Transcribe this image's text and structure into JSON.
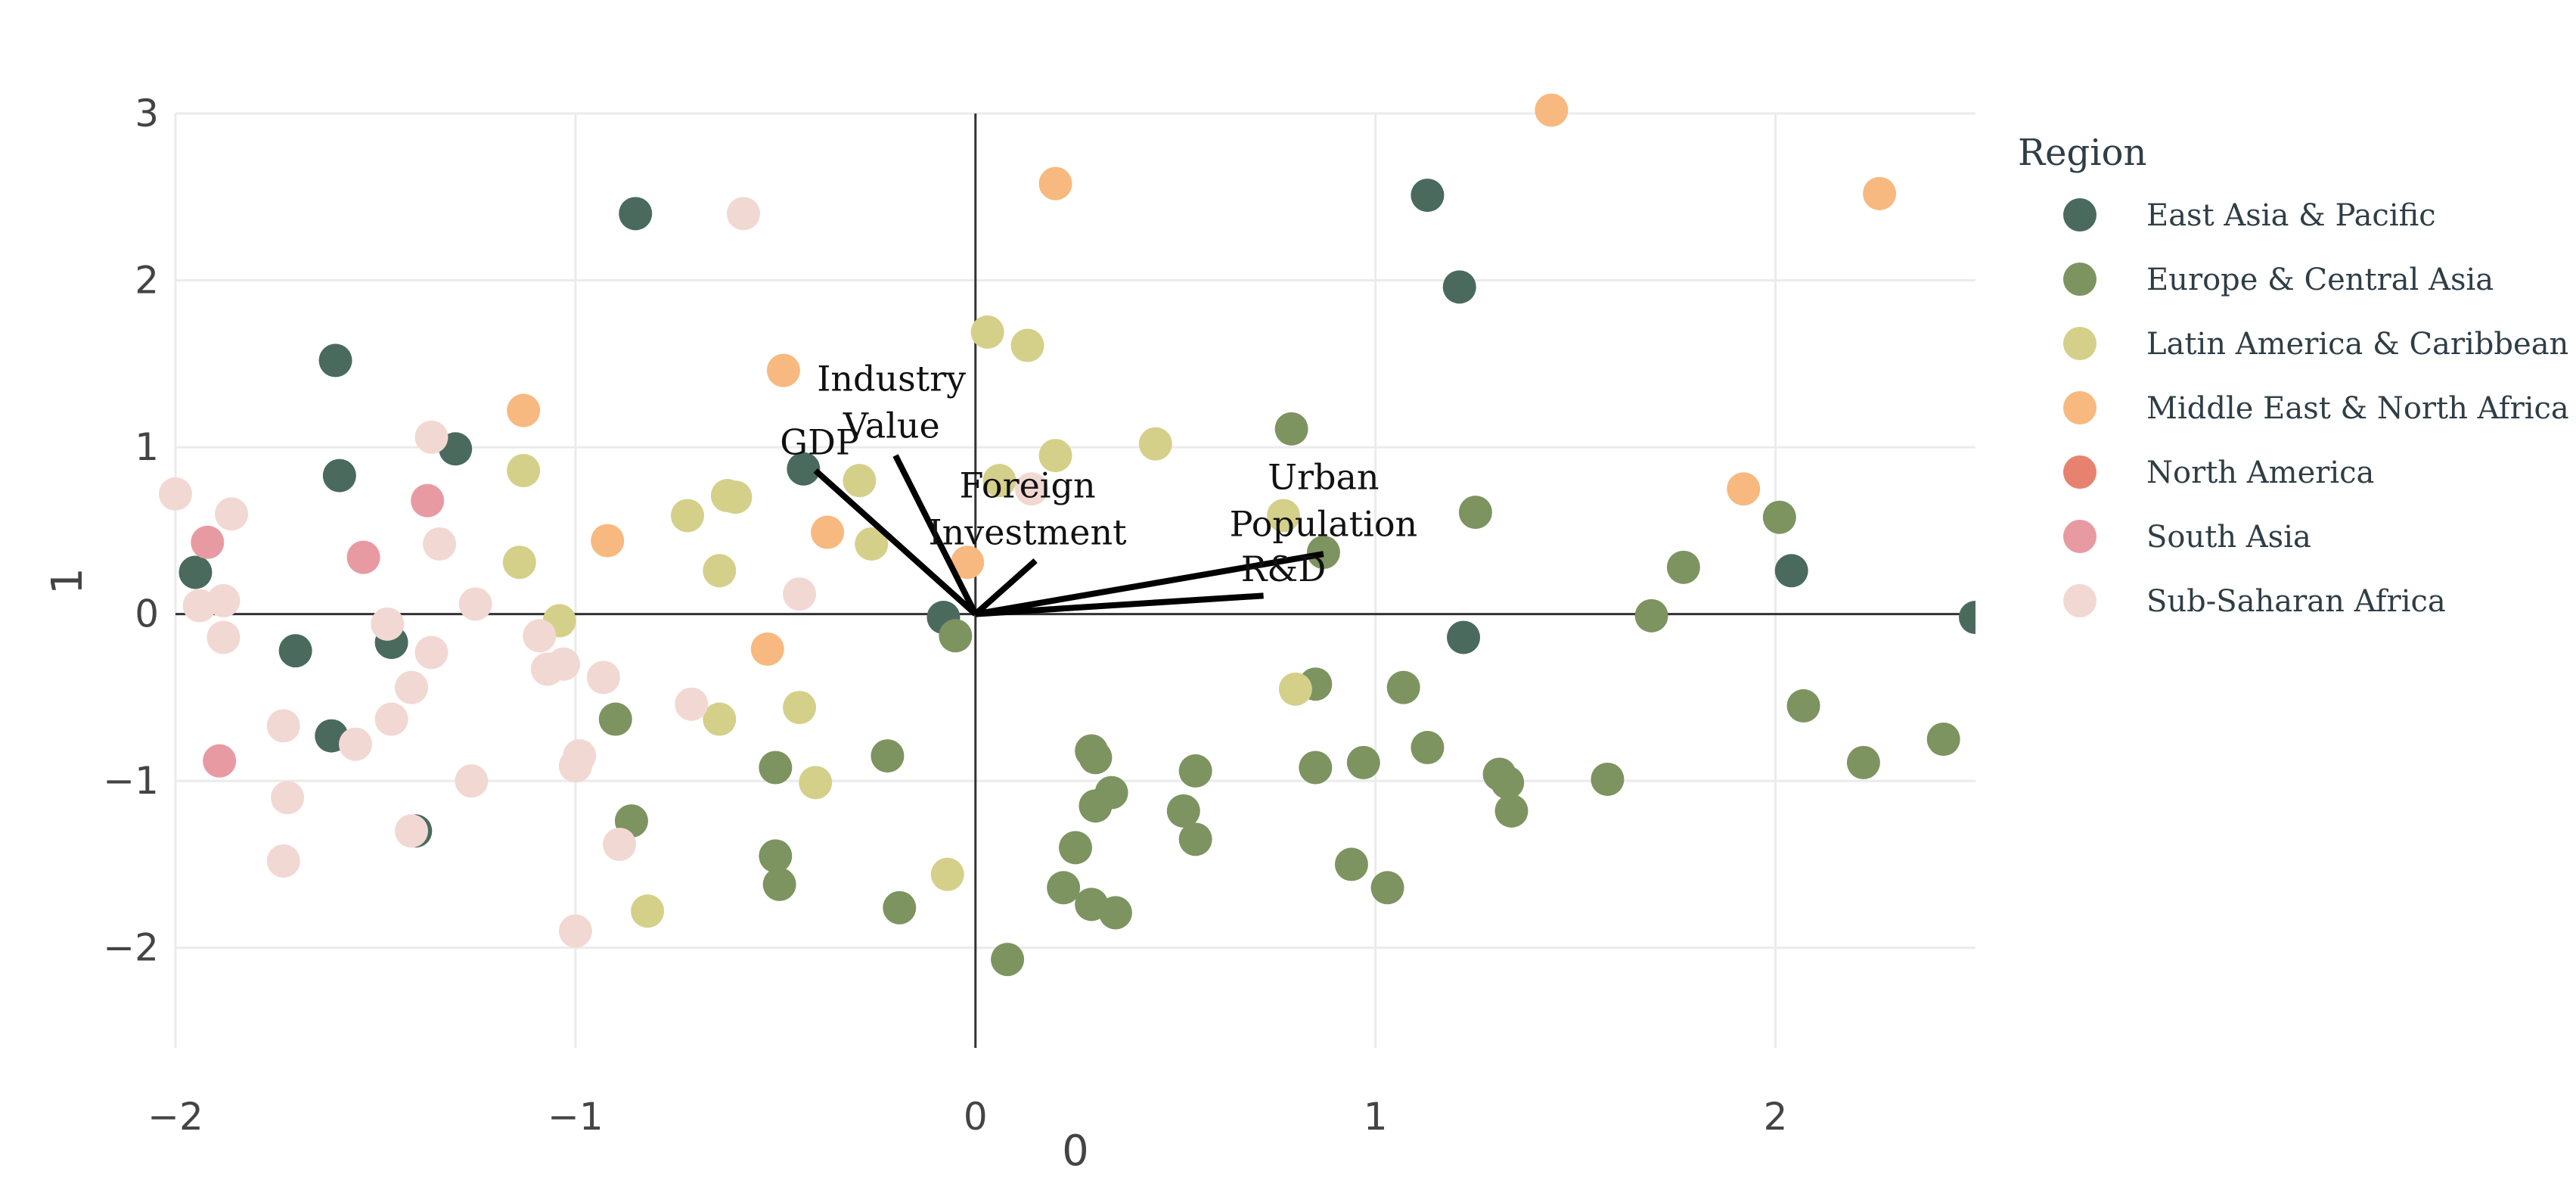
{
  "chart_data": {
    "type": "scatter",
    "subtype": "pca-biplot",
    "xlabel": "0",
    "ylabel": "1",
    "xlim": [
      -2,
      2.5
    ],
    "ylim": [
      -2.6,
      3
    ],
    "x_ticks": [
      "−2",
      "−1",
      "0",
      "1",
      "2"
    ],
    "x_tick_values": [
      -2,
      -1,
      0,
      1,
      2
    ],
    "y_ticks": [
      "−2",
      "−1",
      "0",
      "1",
      "2",
      "3"
    ],
    "y_tick_values": [
      -2,
      -1,
      0,
      1,
      2,
      3
    ],
    "grid": true,
    "legend_title": "Region",
    "legend_position": "right",
    "regions": [
      {
        "name": "East Asia & Pacific",
        "color": "#4a6a5e"
      },
      {
        "name": "Europe & Central Asia",
        "color": "#7d9460"
      },
      {
        "name": "Latin America & Caribbean",
        "color": "#d4d08a"
      },
      {
        "name": "Middle East & North Africa",
        "color": "#f7b97f"
      },
      {
        "name": "North America",
        "color": "#e6826f"
      },
      {
        "name": "South Asia",
        "color": "#e89aa2"
      },
      {
        "name": "Sub-Saharan Africa",
        "color": "#f2d8d2"
      }
    ],
    "loadings": [
      {
        "label": [
          "GDP"
        ],
        "x": -0.4,
        "y": 0.86,
        "label_x": -0.39,
        "label_y": 1.03
      },
      {
        "label": [
          "Industry",
          "Value"
        ],
        "x": -0.2,
        "y": 0.95,
        "label_x": -0.21,
        "label_y": 1.27
      },
      {
        "label": [
          "Foreign",
          "Investment"
        ],
        "x": 0.15,
        "y": 0.32,
        "label_x": 0.13,
        "label_y": 0.63
      },
      {
        "label": [
          "Urban",
          "Population"
        ],
        "x": 0.87,
        "y": 0.36,
        "label_x": 0.87,
        "label_y": 0.68
      },
      {
        "label": [
          "R&D"
        ],
        "x": 0.72,
        "y": 0.11,
        "label_x": 0.77,
        "label_y": 0.27
      }
    ],
    "points": [
      [
        -1.95,
        0.25,
        0
      ],
      [
        -1.6,
        1.52,
        0
      ],
      [
        -1.59,
        0.83,
        0
      ],
      [
        -1.3,
        0.99,
        0
      ],
      [
        -0.85,
        2.4,
        0
      ],
      [
        -1.7,
        -0.22,
        0
      ],
      [
        -1.46,
        -0.17,
        0
      ],
      [
        -1.61,
        -0.73,
        0
      ],
      [
        -1.4,
        -1.3,
        0
      ],
      [
        -0.43,
        0.87,
        0
      ],
      [
        -0.08,
        -0.02,
        0
      ],
      [
        1.13,
        2.51,
        0
      ],
      [
        1.21,
        1.96,
        0
      ],
      [
        1.22,
        -0.14,
        0
      ],
      [
        2.04,
        0.26,
        0
      ],
      [
        2.5,
        -0.02,
        0
      ],
      [
        -0.05,
        -0.13,
        1
      ],
      [
        -0.9,
        -0.63,
        1
      ],
      [
        -0.86,
        -1.24,
        1
      ],
      [
        -0.5,
        -0.92,
        1
      ],
      [
        -0.5,
        -1.45,
        1
      ],
      [
        -0.49,
        -1.62,
        1
      ],
      [
        -0.22,
        -0.85,
        1
      ],
      [
        -0.19,
        -1.76,
        1
      ],
      [
        0.08,
        -2.07,
        1
      ],
      [
        0.22,
        -1.64,
        1
      ],
      [
        0.25,
        -1.4,
        1
      ],
      [
        0.29,
        -1.74,
        1
      ],
      [
        0.29,
        -0.82,
        1
      ],
      [
        0.3,
        -0.86,
        1
      ],
      [
        0.3,
        -1.15,
        1
      ],
      [
        0.34,
        -1.07,
        1
      ],
      [
        0.35,
        -1.79,
        1
      ],
      [
        0.52,
        -1.18,
        1
      ],
      [
        0.55,
        -0.94,
        1
      ],
      [
        0.55,
        -1.35,
        1
      ],
      [
        0.79,
        1.11,
        1
      ],
      [
        0.85,
        -0.42,
        1
      ],
      [
        0.85,
        -0.92,
        1
      ],
      [
        0.87,
        0.37,
        1
      ],
      [
        0.94,
        -1.5,
        1
      ],
      [
        0.97,
        -0.89,
        1
      ],
      [
        1.03,
        -1.64,
        1
      ],
      [
        1.07,
        -0.44,
        1
      ],
      [
        1.13,
        -0.8,
        1
      ],
      [
        1.25,
        0.61,
        1
      ],
      [
        1.31,
        -0.96,
        1
      ],
      [
        1.33,
        -1.01,
        1
      ],
      [
        1.34,
        -1.18,
        1
      ],
      [
        1.58,
        -0.99,
        1
      ],
      [
        1.69,
        -0.01,
        1
      ],
      [
        1.77,
        0.28,
        1
      ],
      [
        2.01,
        0.58,
        1
      ],
      [
        2.07,
        -0.55,
        1
      ],
      [
        2.22,
        -0.89,
        1
      ],
      [
        2.42,
        -0.75,
        1
      ],
      [
        0.03,
        1.69,
        2
      ],
      [
        0.13,
        1.61,
        2
      ],
      [
        0.2,
        0.95,
        2
      ],
      [
        0.06,
        0.8,
        2
      ],
      [
        -0.29,
        0.8,
        2
      ],
      [
        -0.26,
        0.42,
        2
      ],
      [
        -0.4,
        -1.01,
        2
      ],
      [
        -0.44,
        -0.56,
        2
      ],
      [
        -0.64,
        -0.63,
        2
      ],
      [
        -0.64,
        0.26,
        2
      ],
      [
        -0.62,
        0.71,
        2
      ],
      [
        -0.6,
        0.7,
        2
      ],
      [
        -0.72,
        0.59,
        2
      ],
      [
        -0.82,
        -1.78,
        2
      ],
      [
        -1.04,
        -0.04,
        2
      ],
      [
        -1.13,
        0.86,
        2
      ],
      [
        -1.14,
        0.31,
        2
      ],
      [
        -0.07,
        -1.56,
        2
      ],
      [
        0.45,
        1.02,
        2
      ],
      [
        0.77,
        0.59,
        2
      ],
      [
        0.8,
        -0.45,
        2
      ],
      [
        0.2,
        2.58,
        3
      ],
      [
        1.44,
        3.02,
        3
      ],
      [
        2.26,
        2.52,
        3
      ],
      [
        1.92,
        0.75,
        3
      ],
      [
        -0.48,
        1.46,
        3
      ],
      [
        -0.37,
        0.49,
        3
      ],
      [
        -0.52,
        -0.21,
        3
      ],
      [
        -0.92,
        0.44,
        3
      ],
      [
        -1.13,
        1.22,
        3
      ],
      [
        -0.02,
        0.31,
        3
      ],
      [
        -1.92,
        0.43,
        5
      ],
      [
        -1.37,
        0.68,
        5
      ],
      [
        -1.53,
        0.34,
        5
      ],
      [
        -1.89,
        -0.88,
        5
      ],
      [
        -2.0,
        0.72,
        6
      ],
      [
        -0.58,
        2.4,
        6
      ],
      [
        -1.86,
        0.6,
        6
      ],
      [
        -1.88,
        0.08,
        6
      ],
      [
        -1.94,
        0.05,
        6
      ],
      [
        -1.88,
        -0.14,
        6
      ],
      [
        -1.36,
        1.06,
        6
      ],
      [
        -1.34,
        0.42,
        6
      ],
      [
        -1.25,
        0.06,
        6
      ],
      [
        -1.47,
        -0.06,
        6
      ],
      [
        -1.36,
        -0.23,
        6
      ],
      [
        -1.41,
        -0.44,
        6
      ],
      [
        -1.46,
        -0.63,
        6
      ],
      [
        -1.55,
        -0.78,
        6
      ],
      [
        -1.73,
        -0.67,
        6
      ],
      [
        -1.72,
        -1.1,
        6
      ],
      [
        -1.73,
        -1.48,
        6
      ],
      [
        -1.26,
        -1.0,
        6
      ],
      [
        -1.41,
        -1.3,
        6
      ],
      [
        -1.09,
        -0.13,
        6
      ],
      [
        -1.07,
        -0.33,
        6
      ],
      [
        -1.03,
        -0.3,
        6
      ],
      [
        -0.93,
        -0.38,
        6
      ],
      [
        -0.99,
        -0.85,
        6
      ],
      [
        -1.0,
        -0.91,
        6
      ],
      [
        -0.89,
        -1.38,
        6
      ],
      [
        -1.0,
        -1.9,
        6
      ],
      [
        -0.71,
        -0.54,
        6
      ],
      [
        -0.44,
        0.12,
        6
      ],
      [
        0.14,
        0.75,
        6
      ]
    ]
  }
}
